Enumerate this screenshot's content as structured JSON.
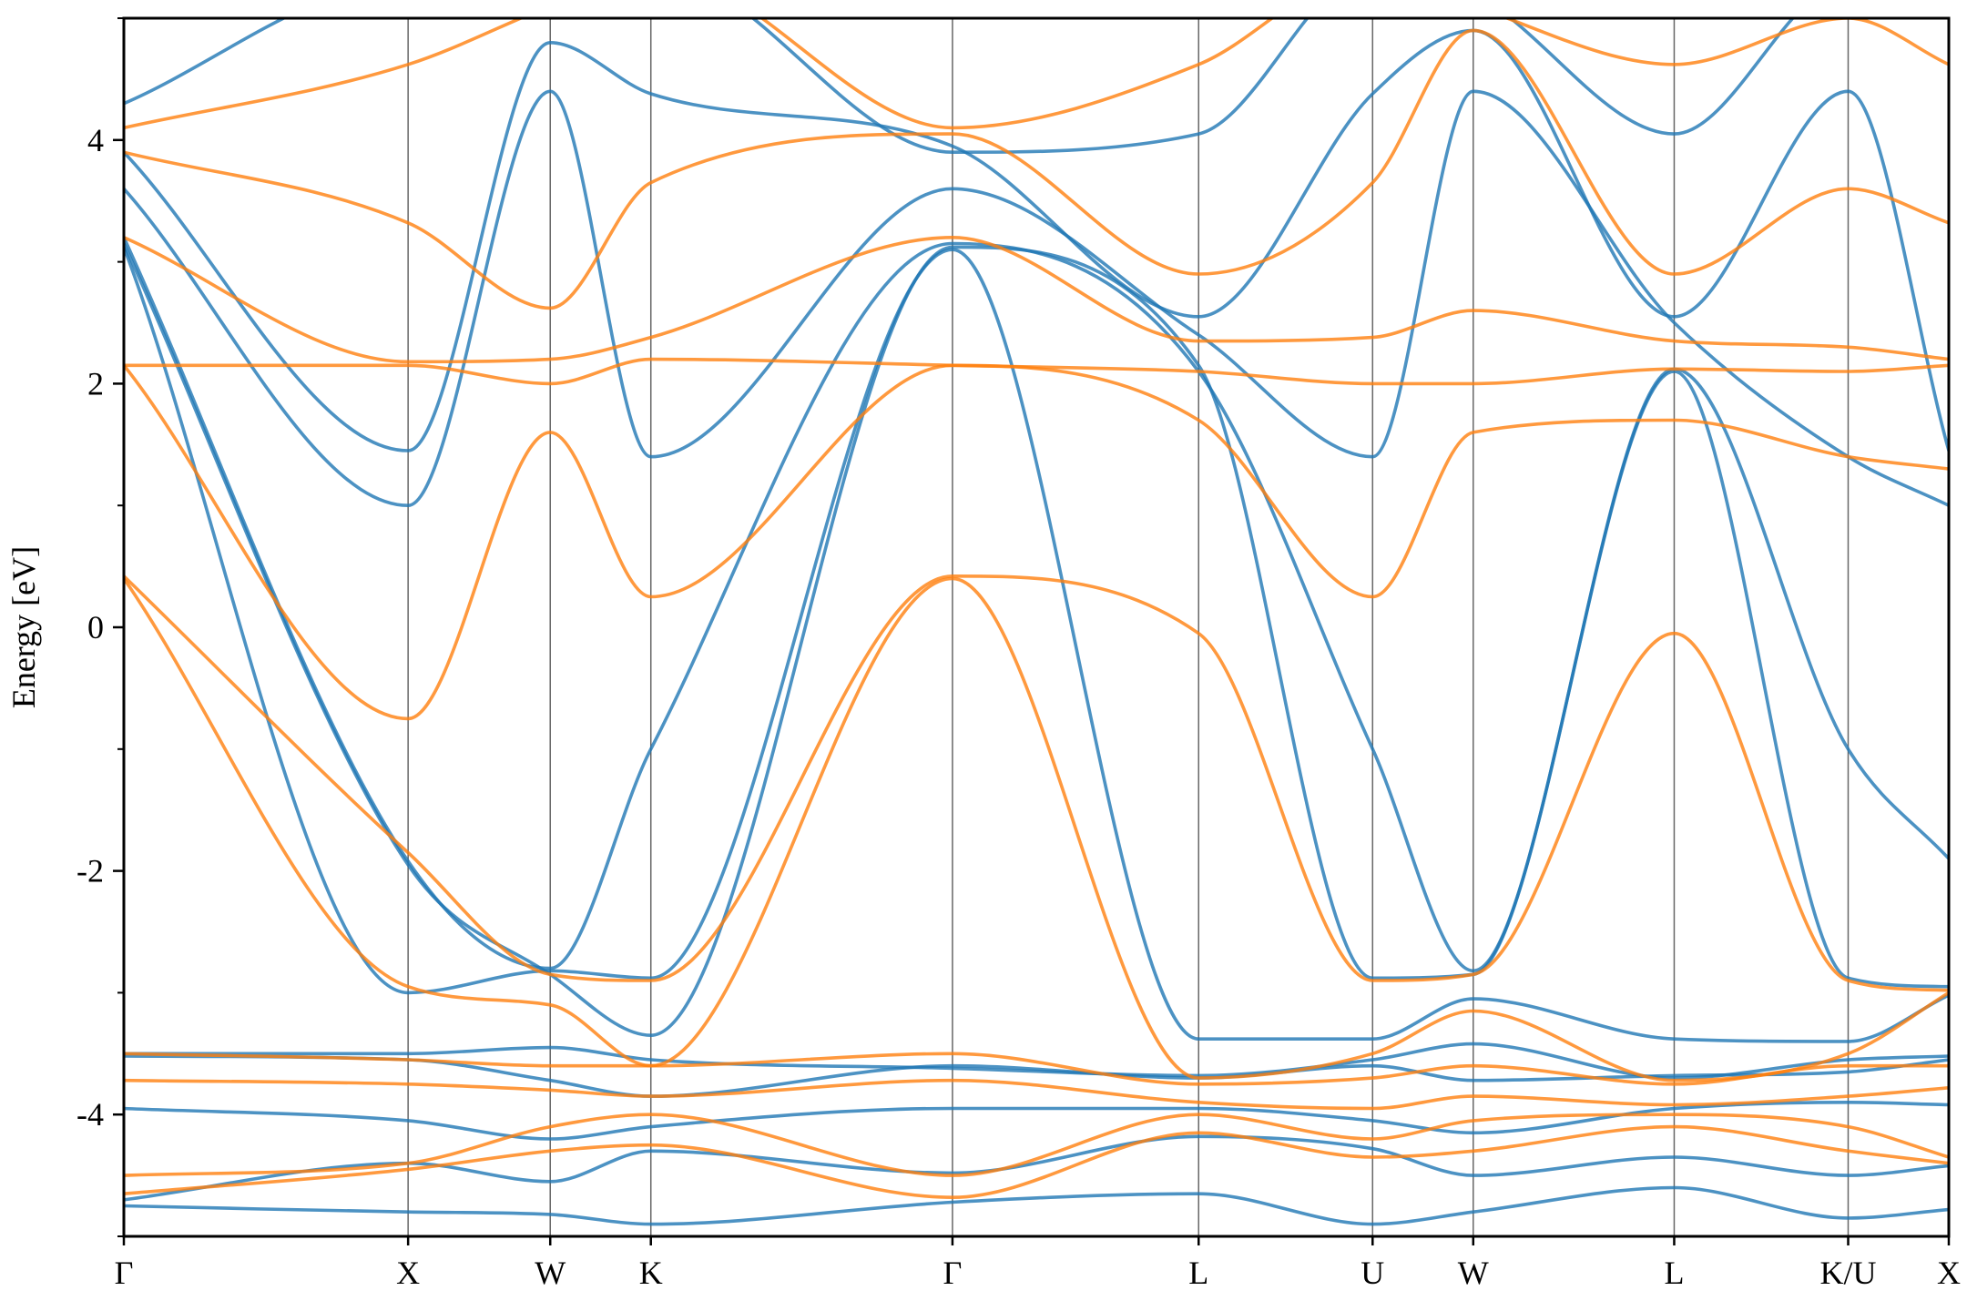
{
  "chart_data": {
    "type": "line",
    "ylabel": "Energy [eV]",
    "ylim": [
      -5,
      5
    ],
    "y_ticks": [
      {
        "value": -4,
        "label": "-4"
      },
      {
        "value": -2,
        "label": "-2"
      },
      {
        "value": 0,
        "label": "0"
      },
      {
        "value": 2,
        "label": "2"
      },
      {
        "value": 4,
        "label": "4"
      }
    ],
    "y_minor_ticks": [
      -5,
      -3,
      -1,
      1,
      3,
      5
    ],
    "kpath": [
      {
        "label": "Γ",
        "x": 0.0
      },
      {
        "label": "X",
        "x": 1.0
      },
      {
        "label": "W",
        "x": 1.5
      },
      {
        "label": "K",
        "x": 1.854
      },
      {
        "label": "Γ",
        "x": 2.915
      },
      {
        "label": "L",
        "x": 3.781
      },
      {
        "label": "U",
        "x": 4.393
      },
      {
        "label": "W",
        "x": 4.747
      },
      {
        "label": "L",
        "x": 5.454
      },
      {
        "label": "K/U",
        "x": 6.066
      },
      {
        "label": "X",
        "x": 6.42
      }
    ],
    "xlim": [
      0,
      6.42
    ],
    "grid": "vertical lines at high-symmetry points",
    "colors": {
      "series_1": "#1f77b4",
      "series_2": "#ff7f0e"
    },
    "series": [
      {
        "color": "#1f77b4",
        "bands": [
          [
            [
              0,
              -4.75
            ],
            [
              1,
              -4.8
            ],
            [
              1.5,
              -4.82
            ],
            [
              1.854,
              -4.9
            ],
            [
              2.915,
              -4.72
            ],
            [
              3.781,
              -4.65
            ],
            [
              4.393,
              -4.9
            ],
            [
              4.747,
              -4.8
            ],
            [
              5.454,
              -4.6
            ],
            [
              6.066,
              -4.85
            ],
            [
              6.42,
              -4.78
            ]
          ],
          [
            [
              0,
              -4.7
            ],
            [
              1,
              -4.4
            ],
            [
              1.5,
              -4.55
            ],
            [
              1.854,
              -4.3
            ],
            [
              2.915,
              -4.48
            ],
            [
              3.781,
              -4.18
            ],
            [
              4.393,
              -4.28
            ],
            [
              4.747,
              -4.5
            ],
            [
              5.454,
              -4.35
            ],
            [
              6.066,
              -4.5
            ],
            [
              6.42,
              -4.42
            ]
          ],
          [
            [
              0,
              -3.95
            ],
            [
              1,
              -4.05
            ],
            [
              1.5,
              -4.2
            ],
            [
              1.854,
              -4.1
            ],
            [
              2.915,
              -3.95
            ],
            [
              3.781,
              -3.95
            ],
            [
              4.393,
              -4.05
            ],
            [
              4.747,
              -4.15
            ],
            [
              5.454,
              -3.95
            ],
            [
              6.066,
              -3.9
            ],
            [
              6.42,
              -3.92
            ]
          ],
          [
            [
              0,
              -3.52
            ],
            [
              1,
              -3.55
            ],
            [
              1.5,
              -3.72
            ],
            [
              1.854,
              -3.85
            ],
            [
              2.915,
              -3.6
            ],
            [
              3.781,
              -3.7
            ],
            [
              4.393,
              -3.6
            ],
            [
              4.747,
              -3.72
            ],
            [
              5.454,
              -3.68
            ],
            [
              6.066,
              -3.65
            ],
            [
              6.42,
              -3.55
            ]
          ],
          [
            [
              0,
              -3.5
            ],
            [
              1,
              -3.5
            ],
            [
              1.5,
              -3.45
            ],
            [
              1.854,
              -3.55
            ],
            [
              2.915,
              -3.62
            ],
            [
              3.781,
              -3.68
            ],
            [
              4.393,
              -3.55
            ],
            [
              4.747,
              -3.42
            ],
            [
              5.454,
              -3.7
            ],
            [
              6.066,
              -3.55
            ],
            [
              6.42,
              -3.52
            ]
          ],
          [
            [
              0,
              3.12
            ],
            [
              1,
              -3.0
            ],
            [
              1.5,
              -2.82
            ],
            [
              1.854,
              -2.88
            ],
            [
              2.915,
              3.1
            ],
            [
              3.781,
              -3.38
            ],
            [
              4.393,
              -3.38
            ],
            [
              4.747,
              -3.05
            ],
            [
              5.454,
              -3.38
            ],
            [
              6.066,
              -3.4
            ],
            [
              6.42,
              -3.02
            ]
          ],
          [
            [
              0,
              3.15
            ],
            [
              1,
              -1.95
            ],
            [
              1.5,
              -2.85
            ],
            [
              1.854,
              -3.35
            ],
            [
              2.915,
              3.12
            ],
            [
              3.781,
              2.15
            ],
            [
              4.393,
              -2.88
            ],
            [
              4.747,
              -2.85
            ],
            [
              5.454,
              2.1
            ],
            [
              6.066,
              -2.88
            ],
            [
              6.42,
              -2.95
            ]
          ],
          [
            [
              0,
              3.2
            ],
            [
              1,
              -1.92
            ],
            [
              1.5,
              -2.8
            ],
            [
              1.854,
              -1.0
            ],
            [
              2.915,
              3.15
            ],
            [
              3.781,
              2.1
            ],
            [
              4.393,
              -1.0
            ],
            [
              4.747,
              -2.82
            ],
            [
              5.454,
              2.12
            ],
            [
              6.066,
              -1.0
            ],
            [
              6.42,
              -1.9
            ]
          ],
          [
            [
              0,
              3.6
            ],
            [
              1,
              1.0
            ],
            [
              1.5,
              4.4
            ],
            [
              1.854,
              1.4
            ],
            [
              2.915,
              3.6
            ],
            [
              3.781,
              2.4
            ],
            [
              4.393,
              1.4
            ],
            [
              4.747,
              4.4
            ],
            [
              5.454,
              2.5
            ],
            [
              6.066,
              1.4
            ],
            [
              6.42,
              1.0
            ]
          ],
          [
            [
              0,
              3.9
            ],
            [
              1,
              1.45
            ],
            [
              1.5,
              4.8
            ],
            [
              1.854,
              4.38
            ],
            [
              2.915,
              3.95
            ],
            [
              3.781,
              2.55
            ],
            [
              4.393,
              4.38
            ],
            [
              4.747,
              4.9
            ],
            [
              5.454,
              2.55
            ],
            [
              6.066,
              4.4
            ],
            [
              6.42,
              1.45
            ]
          ],
          [
            [
              0,
              4.3
            ],
            [
              1,
              5.3
            ],
            [
              1.5,
              5.2
            ],
            [
              1.854,
              5.4
            ],
            [
              2.915,
              3.9
            ],
            [
              3.781,
              4.05
            ],
            [
              4.393,
              5.4
            ],
            [
              4.747,
              5.2
            ],
            [
              5.454,
              4.05
            ],
            [
              6.066,
              5.3
            ],
            [
              6.42,
              5.3
            ]
          ]
        ]
      },
      {
        "color": "#ff7f0e",
        "bands": [
          [
            [
              0,
              -4.65
            ],
            [
              1,
              -4.45
            ],
            [
              1.5,
              -4.3
            ],
            [
              1.854,
              -4.25
            ],
            [
              2.915,
              -4.68
            ],
            [
              3.781,
              -4.15
            ],
            [
              4.393,
              -4.35
            ],
            [
              4.747,
              -4.3
            ],
            [
              5.454,
              -4.1
            ],
            [
              6.066,
              -4.3
            ],
            [
              6.42,
              -4.4
            ]
          ],
          [
            [
              0,
              -4.5
            ],
            [
              1,
              -4.4
            ],
            [
              1.5,
              -4.1
            ],
            [
              1.854,
              -4.0
            ],
            [
              2.915,
              -4.5
            ],
            [
              3.781,
              -4.0
            ],
            [
              4.393,
              -4.2
            ],
            [
              4.747,
              -4.05
            ],
            [
              5.454,
              -4.0
            ],
            [
              6.066,
              -4.1
            ],
            [
              6.42,
              -4.35
            ]
          ],
          [
            [
              0,
              -3.72
            ],
            [
              1,
              -3.75
            ],
            [
              1.5,
              -3.8
            ],
            [
              1.854,
              -3.85
            ],
            [
              2.915,
              -3.72
            ],
            [
              3.781,
              -3.9
            ],
            [
              4.393,
              -3.95
            ],
            [
              4.747,
              -3.85
            ],
            [
              5.454,
              -3.92
            ],
            [
              6.066,
              -3.85
            ],
            [
              6.42,
              -3.78
            ]
          ],
          [
            [
              0,
              -3.5
            ],
            [
              1,
              -3.55
            ],
            [
              1.5,
              -3.6
            ],
            [
              1.854,
              -3.6
            ],
            [
              2.915,
              -3.5
            ],
            [
              3.781,
              -3.75
            ],
            [
              4.393,
              -3.7
            ],
            [
              4.747,
              -3.6
            ],
            [
              5.454,
              -3.75
            ],
            [
              6.066,
              -3.6
            ],
            [
              6.42,
              -3.6
            ]
          ],
          [
            [
              0,
              0.42
            ],
            [
              1,
              -1.85
            ],
            [
              1.5,
              -2.85
            ],
            [
              1.854,
              -2.9
            ],
            [
              2.915,
              0.42
            ],
            [
              3.781,
              -0.05
            ],
            [
              4.393,
              -2.9
            ],
            [
              4.747,
              -2.85
            ],
            [
              5.454,
              -0.05
            ],
            [
              6.066,
              -2.9
            ],
            [
              6.42,
              -2.98
            ]
          ],
          [
            [
              0,
              0.4
            ],
            [
              1,
              -2.95
            ],
            [
              1.5,
              -3.1
            ],
            [
              1.854,
              -3.6
            ],
            [
              2.915,
              0.4
            ],
            [
              3.781,
              -3.7
            ],
            [
              4.393,
              -3.5
            ],
            [
              4.747,
              -3.15
            ],
            [
              5.454,
              -3.72
            ],
            [
              6.066,
              -3.5
            ],
            [
              6.42,
              -3.0
            ]
          ],
          [
            [
              0,
              2.15
            ],
            [
              1,
              -0.75
            ],
            [
              1.5,
              1.6
            ],
            [
              1.854,
              0.25
            ],
            [
              2.915,
              2.15
            ],
            [
              3.781,
              1.7
            ],
            [
              4.393,
              0.25
            ],
            [
              4.747,
              1.6
            ],
            [
              5.454,
              1.7
            ],
            [
              6.066,
              1.4
            ],
            [
              6.42,
              1.3
            ]
          ],
          [
            [
              0,
              2.15
            ],
            [
              1,
              2.15
            ],
            [
              1.5,
              2.0
            ],
            [
              1.854,
              2.2
            ],
            [
              2.915,
              2.15
            ],
            [
              3.781,
              2.1
            ],
            [
              4.393,
              2.0
            ],
            [
              4.747,
              2.0
            ],
            [
              5.454,
              2.12
            ],
            [
              6.066,
              2.1
            ],
            [
              6.42,
              2.15
            ]
          ],
          [
            [
              0,
              3.2
            ],
            [
              1,
              2.18
            ],
            [
              1.5,
              2.2
            ],
            [
              1.854,
              2.38
            ],
            [
              2.915,
              3.2
            ],
            [
              3.781,
              2.35
            ],
            [
              4.393,
              2.38
            ],
            [
              4.747,
              2.6
            ],
            [
              5.454,
              2.35
            ],
            [
              6.066,
              2.3
            ],
            [
              6.42,
              2.2
            ]
          ],
          [
            [
              0,
              3.9
            ],
            [
              1,
              3.32
            ],
            [
              1.5,
              2.62
            ],
            [
              1.854,
              3.65
            ],
            [
              2.915,
              4.05
            ],
            [
              3.781,
              2.9
            ],
            [
              4.393,
              3.65
            ],
            [
              4.747,
              4.9
            ],
            [
              5.454,
              2.9
            ],
            [
              6.066,
              3.6
            ],
            [
              6.42,
              3.32
            ]
          ],
          [
            [
              0,
              4.1
            ],
            [
              1,
              4.62
            ],
            [
              1.5,
              5.1
            ],
            [
              1.854,
              5.4
            ],
            [
              2.915,
              4.1
            ],
            [
              3.781,
              4.62
            ],
            [
              4.393,
              5.4
            ],
            [
              4.747,
              5.1
            ],
            [
              5.454,
              4.62
            ],
            [
              6.066,
              5.0
            ],
            [
              6.42,
              4.62
            ]
          ]
        ]
      }
    ]
  }
}
